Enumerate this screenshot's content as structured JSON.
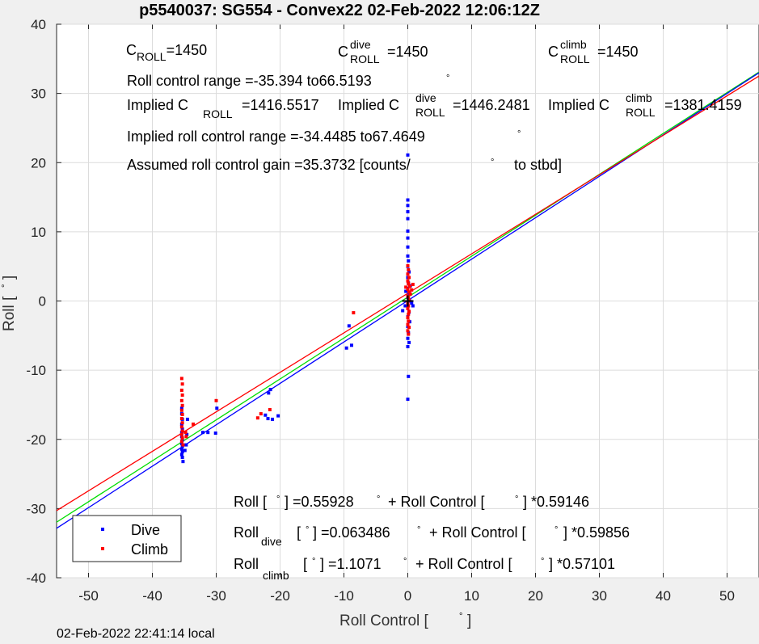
{
  "chart_data": {
    "type": "scatter",
    "title": "p5540037: SG554 - Convex22 02-Feb-2022 12:06:12Z",
    "xlabel": "Roll Control [",
    "xlabel_unit": "°",
    "xlabel_close": "]",
    "ylabel": "Roll [",
    "ylabel_unit": "°",
    "ylabel_close": "]",
    "xlim": [
      -55,
      55
    ],
    "ylim": [
      -40,
      40
    ],
    "xticks": [
      -50,
      -40,
      -30,
      -20,
      -10,
      0,
      10,
      20,
      30,
      40,
      50
    ],
    "yticks": [
      -40,
      -30,
      -20,
      -10,
      0,
      10,
      20,
      30,
      40
    ],
    "grid": true,
    "legend_position": "bottom-left",
    "footer": "02-Feb-2022 22:41:14 local",
    "series": [
      {
        "name": "Dive",
        "color": "#0000ff",
        "points": [
          [
            -35.4,
            -15.5
          ],
          [
            -35.4,
            -16.3
          ],
          [
            -35.3,
            -17.1
          ],
          [
            -35.4,
            -17.8
          ],
          [
            -35.3,
            -18.5
          ],
          [
            -35.4,
            -19.0
          ],
          [
            -35.4,
            -19.6
          ],
          [
            -35.3,
            -20.1
          ],
          [
            -35.4,
            -20.6
          ],
          [
            -35.3,
            -21.0
          ],
          [
            -35.4,
            -21.4
          ],
          [
            -35.3,
            -21.8
          ],
          [
            -35.4,
            -22.2
          ],
          [
            -35.3,
            -22.6
          ],
          [
            -35.2,
            -23.2
          ],
          [
            -34.9,
            -21.6
          ],
          [
            -34.7,
            -20.8
          ],
          [
            -34.6,
            -19.3
          ],
          [
            -34.5,
            -17.1
          ],
          [
            -32.1,
            -19.0
          ],
          [
            -31.3,
            -19.0
          ],
          [
            -30.1,
            -19.1
          ],
          [
            -29.9,
            -15.5
          ],
          [
            -22.3,
            -16.5
          ],
          [
            -21.8,
            -13.3
          ],
          [
            -21.5,
            -12.8
          ],
          [
            -21.9,
            -17.0
          ],
          [
            -21.2,
            -17.1
          ],
          [
            -20.3,
            -16.6
          ],
          [
            -9.6,
            -6.8
          ],
          [
            -9.2,
            -3.6
          ],
          [
            -8.8,
            -6.4
          ],
          [
            0.0,
            21.1
          ],
          [
            0.0,
            14.6
          ],
          [
            0.0,
            13.8
          ],
          [
            0.0,
            12.9
          ],
          [
            0.0,
            11.9
          ],
          [
            0.0,
            10.1
          ],
          [
            0.0,
            9.1
          ],
          [
            0.0,
            7.8
          ],
          [
            0.0,
            6.5
          ],
          [
            0.1,
            5.8
          ],
          [
            0.0,
            5.0
          ],
          [
            0.2,
            4.2
          ],
          [
            0.0,
            3.4
          ],
          [
            0.1,
            2.6
          ],
          [
            0.0,
            1.8
          ],
          [
            0.2,
            1.1
          ],
          [
            0.0,
            0.5
          ],
          [
            0.3,
            0.0
          ],
          [
            0.0,
            -0.4
          ],
          [
            0.6,
            -0.3
          ],
          [
            0.8,
            -0.7
          ],
          [
            -0.4,
            -0.7
          ],
          [
            -0.8,
            -1.4
          ],
          [
            0.0,
            -1.0
          ],
          [
            0.2,
            -1.6
          ],
          [
            0.0,
            -2.3
          ],
          [
            0.3,
            -3.0
          ],
          [
            0.0,
            -3.7
          ],
          [
            0.1,
            -4.6
          ],
          [
            0.0,
            -5.4
          ],
          [
            0.2,
            -6.0
          ],
          [
            0.0,
            -6.6
          ],
          [
            0.1,
            -10.9
          ],
          [
            0.0,
            -14.2
          ],
          [
            -0.3,
            1.4
          ],
          [
            0.4,
            2.2
          ]
        ]
      },
      {
        "name": "Climb",
        "color": "#ff0000",
        "points": [
          [
            -35.4,
            -11.2
          ],
          [
            -35.3,
            -12.0
          ],
          [
            -35.4,
            -12.9
          ],
          [
            -35.3,
            -13.6
          ],
          [
            -35.4,
            -14.4
          ],
          [
            -35.3,
            -15.1
          ],
          [
            -35.4,
            -15.8
          ],
          [
            -35.3,
            -16.4
          ],
          [
            -35.4,
            -17.0
          ],
          [
            -35.3,
            -17.6
          ],
          [
            -35.4,
            -18.2
          ],
          [
            -35.3,
            -18.8
          ],
          [
            -35.4,
            -19.3
          ],
          [
            -35.3,
            -19.8
          ],
          [
            -35.4,
            -20.3
          ],
          [
            -35.2,
            -20.8
          ],
          [
            -34.8,
            -19.0
          ],
          [
            -34.7,
            -19.6
          ],
          [
            -33.6,
            -17.8
          ],
          [
            -30.0,
            -14.4
          ],
          [
            -23.5,
            -16.9
          ],
          [
            -23.0,
            -16.3
          ],
          [
            -21.6,
            -15.7
          ],
          [
            -8.5,
            -1.7
          ],
          [
            0.0,
            5.1
          ],
          [
            0.1,
            4.5
          ],
          [
            0.0,
            3.9
          ],
          [
            0.2,
            3.4
          ],
          [
            0.0,
            2.9
          ],
          [
            0.1,
            2.5
          ],
          [
            0.3,
            2.1
          ],
          [
            0.0,
            1.7
          ],
          [
            0.2,
            1.3
          ],
          [
            0.4,
            1.0
          ],
          [
            0.0,
            0.7
          ],
          [
            0.1,
            0.4
          ],
          [
            0.2,
            0.1
          ],
          [
            0.0,
            -0.3
          ],
          [
            0.1,
            -0.7
          ],
          [
            0.0,
            -1.1
          ],
          [
            0.2,
            -1.5
          ],
          [
            0.1,
            -1.9
          ],
          [
            0.0,
            -2.4
          ],
          [
            0.1,
            -2.9
          ],
          [
            0.0,
            -3.4
          ],
          [
            0.2,
            -3.8
          ],
          [
            0.0,
            -4.3
          ],
          [
            0.1,
            -4.8
          ],
          [
            0.6,
            1.6
          ],
          [
            0.8,
            2.4
          ],
          [
            -0.3,
            2.0
          ]
        ]
      }
    ],
    "fit_lines": [
      {
        "series": "all",
        "color": "#00dd00",
        "intercept": 0.55928,
        "slope": 0.59146
      },
      {
        "series": "dive",
        "color": "#0000ff",
        "intercept": 0.063486,
        "slope": 0.59856
      },
      {
        "series": "climb",
        "color": "#ff0000",
        "intercept": 1.1071,
        "slope": 0.57101
      }
    ],
    "crosshair": [
      0.0,
      0.0
    ],
    "annotations": {
      "c_roll": {
        "base": "C",
        "sub": "ROLL",
        "value": "=1450"
      },
      "c_roll_dive": {
        "base": "C",
        "sup": "dive",
        "sub": "ROLL",
        "value": "=1450"
      },
      "c_roll_climb": {
        "base": "C",
        "sup": "climb",
        "sub": "ROLL",
        "value": "=1450"
      },
      "roll_range": {
        "text": "Roll control range =-35.394 to66.5193",
        "unit": "°"
      },
      "implied_c": {
        "text": "Implied C",
        "sub": "ROLL",
        "value": "=1416.5517"
      },
      "implied_c_dive": {
        "text": "Implied C",
        "sup": "dive",
        "sub": "ROLL",
        "value": "=1446.2481"
      },
      "implied_c_climb": {
        "text": "Implied C",
        "sup": "climb",
        "sub": "ROLL",
        "value": "=1381.4159"
      },
      "implied_range": {
        "text": "Implied roll control range =-34.4485 to67.4649",
        "unit": "°"
      },
      "gain": {
        "text": "Assumed roll control gain =35.3732 [counts/",
        "unit": "°",
        "tail": "to stbd]"
      },
      "fit_all": {
        "lhs": "Roll [",
        "unit": "°",
        "mid": "] =0.55928",
        "unit2": "°",
        "rhs": "+ Roll Control [",
        "unit3": "°",
        "end": "] *0.59146"
      },
      "fit_dive": {
        "lhs": "Roll",
        "sub": "dive",
        "open": "[",
        "unit": "°",
        "mid": "] =0.063486",
        "unit2": "°",
        "rhs": "+ Roll Control [",
        "unit3": "°",
        "end": "] *0.59856"
      },
      "fit_climb": {
        "lhs": "Roll",
        "sub": "climb",
        "open": "[",
        "unit": "°",
        "mid": "] =1.1071",
        "unit2": "°",
        "rhs": "+ Roll Control [",
        "unit3": "°",
        "end": "] *0.57101"
      }
    }
  }
}
